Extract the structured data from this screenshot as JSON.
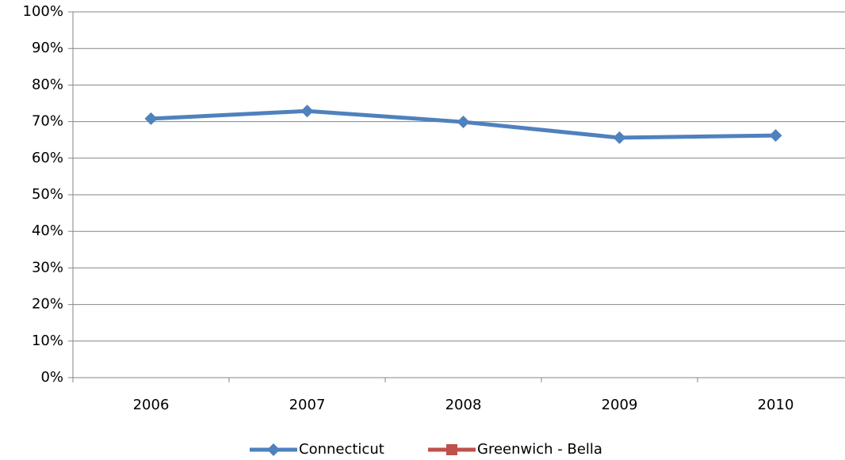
{
  "chart_data": {
    "type": "line",
    "categories": [
      "2006",
      "2007",
      "2008",
      "2009",
      "2010"
    ],
    "series": [
      {
        "name": "Connecticut",
        "color": "#4f81bd",
        "marker": "diamond",
        "values": [
          70.8,
          72.9,
          69.9,
          65.6,
          66.2
        ]
      },
      {
        "name": "Greenwich - Bella",
        "color": "#c0504d",
        "marker": "square",
        "values": [
          null,
          null,
          null,
          null,
          null
        ]
      }
    ],
    "ylim": [
      0,
      100
    ],
    "yticks": [
      {
        "value": 0,
        "label": "0%"
      },
      {
        "value": 10,
        "label": "10%"
      },
      {
        "value": 20,
        "label": "20%"
      },
      {
        "value": 30,
        "label": "30%"
      },
      {
        "value": 40,
        "label": "40%"
      },
      {
        "value": 50,
        "label": "50%"
      },
      {
        "value": 60,
        "label": "60%"
      },
      {
        "value": 70,
        "label": "70%"
      },
      {
        "value": 80,
        "label": "80%"
      },
      {
        "value": 90,
        "label": "90%"
      },
      {
        "value": 100,
        "label": "100%"
      }
    ],
    "grid": true,
    "legend": "bottom"
  }
}
